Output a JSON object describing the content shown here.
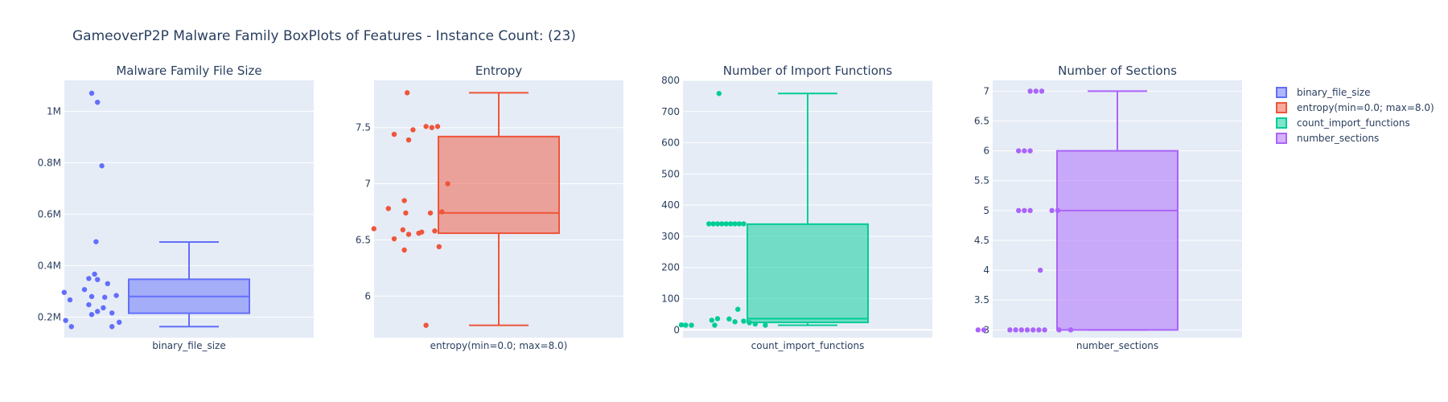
{
  "title": "GameoverP2P Malware Family BoxPlots of Features - Instance Count: (23)",
  "chart_data": [
    {
      "type": "box",
      "title": "Malware Family File Size",
      "xlabel": "binary_file_size",
      "color": "#636efa",
      "ylim": [
        120000,
        1120000
      ],
      "yticks": [
        200000,
        400000,
        600000,
        800000,
        1000000
      ],
      "yticklabels": [
        "0.2M",
        "0.4M",
        "0.6M",
        "0.8M",
        "1M"
      ],
      "stats": {
        "min": 163000,
        "q1": 215000,
        "median": 280000,
        "q3": 347000,
        "max": 492000
      },
      "points": [
        {
          "x": -0.05,
          "y": 1070000
        },
        {
          "x": -0.01,
          "y": 1035000
        },
        {
          "x": 0.02,
          "y": 788000
        },
        {
          "x": -0.02,
          "y": 493000
        },
        {
          "x": -0.03,
          "y": 367000
        },
        {
          "x": -0.07,
          "y": 350000
        },
        {
          "x": -0.01,
          "y": 346000
        },
        {
          "x": 0.06,
          "y": 330000
        },
        {
          "x": -0.1,
          "y": 307000
        },
        {
          "x": -0.24,
          "y": 296000
        },
        {
          "x": 0.12,
          "y": 284000
        },
        {
          "x": -0.05,
          "y": 280000
        },
        {
          "x": 0.04,
          "y": 277000
        },
        {
          "x": -0.2,
          "y": 267000
        },
        {
          "x": -0.07,
          "y": 248000
        },
        {
          "x": 0.03,
          "y": 236000
        },
        {
          "x": -0.01,
          "y": 222000
        },
        {
          "x": 0.09,
          "y": 216000
        },
        {
          "x": -0.05,
          "y": 210000
        },
        {
          "x": -0.23,
          "y": 187000
        },
        {
          "x": 0.14,
          "y": 180000
        },
        {
          "x": -0.19,
          "y": 163000
        },
        {
          "x": 0.09,
          "y": 163000
        }
      ]
    },
    {
      "type": "box",
      "title": "Entropy",
      "xlabel": "entropy(min=0.0; max=8.0)",
      "color": "#ef553b",
      "ylim": [
        5.63,
        7.92
      ],
      "yticks": [
        6,
        6.5,
        7,
        7.5
      ],
      "yticklabels": [
        "6",
        "6.5",
        "7",
        "7.5"
      ],
      "stats": {
        "min": 5.74,
        "q1": 6.56,
        "median": 6.74,
        "q3": 7.42,
        "max": 7.81
      },
      "points": [
        {
          "x": -0.01,
          "y": 7.81
        },
        {
          "x": 0.2,
          "y": 7.51
        },
        {
          "x": 0.12,
          "y": 7.51
        },
        {
          "x": 0.16,
          "y": 7.5
        },
        {
          "x": 0.03,
          "y": 7.48
        },
        {
          "x": -0.1,
          "y": 7.44
        },
        {
          "x": 0.0,
          "y": 7.39
        },
        {
          "x": 0.27,
          "y": 7.0
        },
        {
          "x": -0.03,
          "y": 6.85
        },
        {
          "x": -0.14,
          "y": 6.78
        },
        {
          "x": 0.23,
          "y": 6.75
        },
        {
          "x": 0.15,
          "y": 6.74
        },
        {
          "x": -0.02,
          "y": 6.74
        },
        {
          "x": -0.24,
          "y": 6.6
        },
        {
          "x": -0.04,
          "y": 6.59
        },
        {
          "x": 0.18,
          "y": 6.58
        },
        {
          "x": 0.09,
          "y": 6.57
        },
        {
          "x": 0.07,
          "y": 6.56
        },
        {
          "x": 0.0,
          "y": 6.55
        },
        {
          "x": -0.1,
          "y": 6.51
        },
        {
          "x": 0.21,
          "y": 6.44
        },
        {
          "x": -0.03,
          "y": 6.41
        },
        {
          "x": 0.12,
          "y": 5.74
        }
      ]
    },
    {
      "type": "box",
      "title": "Number of Import Functions",
      "xlabel": "count_import_functions",
      "color": "#00cc96",
      "ylim": [
        -25,
        800
      ],
      "yticks": [
        0,
        100,
        200,
        300,
        400,
        500,
        600,
        700,
        800
      ],
      "yticklabels": [
        "0",
        "100",
        "200",
        "300",
        "400",
        "500",
        "600",
        "700",
        "800"
      ],
      "stats": {
        "min": 15,
        "q1": 24,
        "median": 36,
        "q3": 339,
        "max": 758
      },
      "points": [
        {
          "x": 0.01,
          "y": 758
        },
        {
          "x": -0.06,
          "y": 340
        },
        {
          "x": -0.03,
          "y": 340
        },
        {
          "x": 0.0,
          "y": 340
        },
        {
          "x": 0.03,
          "y": 340
        },
        {
          "x": 0.06,
          "y": 340
        },
        {
          "x": 0.09,
          "y": 340
        },
        {
          "x": 0.12,
          "y": 340
        },
        {
          "x": 0.15,
          "y": 340
        },
        {
          "x": 0.18,
          "y": 340
        },
        {
          "x": 0.14,
          "y": 66
        },
        {
          "x": 0.0,
          "y": 36
        },
        {
          "x": 0.08,
          "y": 35
        },
        {
          "x": -0.04,
          "y": 31
        },
        {
          "x": 0.18,
          "y": 28
        },
        {
          "x": 0.12,
          "y": 26
        },
        {
          "x": 0.22,
          "y": 23
        },
        {
          "x": 0.26,
          "y": 19
        },
        {
          "x": -0.25,
          "y": 16
        },
        {
          "x": -0.22,
          "y": 15
        },
        {
          "x": -0.18,
          "y": 15
        },
        {
          "x": 0.33,
          "y": 15
        },
        {
          "x": -0.02,
          "y": 15
        }
      ]
    },
    {
      "type": "box",
      "title": "Number of Sections",
      "xlabel": "number_sections",
      "color": "#ab63fa",
      "ylim": [
        2.87,
        7.18
      ],
      "yticks": [
        3,
        3.5,
        4,
        4.5,
        5,
        5.5,
        6,
        6.5,
        7
      ],
      "yticklabels": [
        "3",
        "3.5",
        "4",
        "4.5",
        "5",
        "5.5",
        "6",
        "6.5",
        "7"
      ],
      "stats": {
        "min": 3,
        "q1": 3,
        "median": 5,
        "q3": 6,
        "max": 7
      },
      "points": [
        {
          "x": 0.02,
          "y": 7
        },
        {
          "x": 0.06,
          "y": 7
        },
        {
          "x": 0.1,
          "y": 7
        },
        {
          "x": -0.06,
          "y": 6
        },
        {
          "x": -0.02,
          "y": 6
        },
        {
          "x": 0.02,
          "y": 6
        },
        {
          "x": -0.06,
          "y": 5
        },
        {
          "x": -0.02,
          "y": 5
        },
        {
          "x": 0.02,
          "y": 5
        },
        {
          "x": 0.17,
          "y": 5
        },
        {
          "x": 0.21,
          "y": 5
        },
        {
          "x": 0.09,
          "y": 4
        },
        {
          "x": -0.34,
          "y": 3
        },
        {
          "x": -0.3,
          "y": 3
        },
        {
          "x": -0.12,
          "y": 3
        },
        {
          "x": -0.08,
          "y": 3
        },
        {
          "x": -0.04,
          "y": 3
        },
        {
          "x": 0.0,
          "y": 3
        },
        {
          "x": 0.04,
          "y": 3
        },
        {
          "x": 0.08,
          "y": 3
        },
        {
          "x": 0.12,
          "y": 3
        },
        {
          "x": 0.22,
          "y": 3
        },
        {
          "x": 0.3,
          "y": 3
        }
      ]
    }
  ],
  "legend": [
    {
      "label": "binary_file_size",
      "color": "#636efa"
    },
    {
      "label": "entropy(min=0.0; max=8.0)",
      "color": "#ef553b"
    },
    {
      "label": "count_import_functions",
      "color": "#00cc96"
    },
    {
      "label": "number_sections",
      "color": "#ab63fa"
    }
  ]
}
